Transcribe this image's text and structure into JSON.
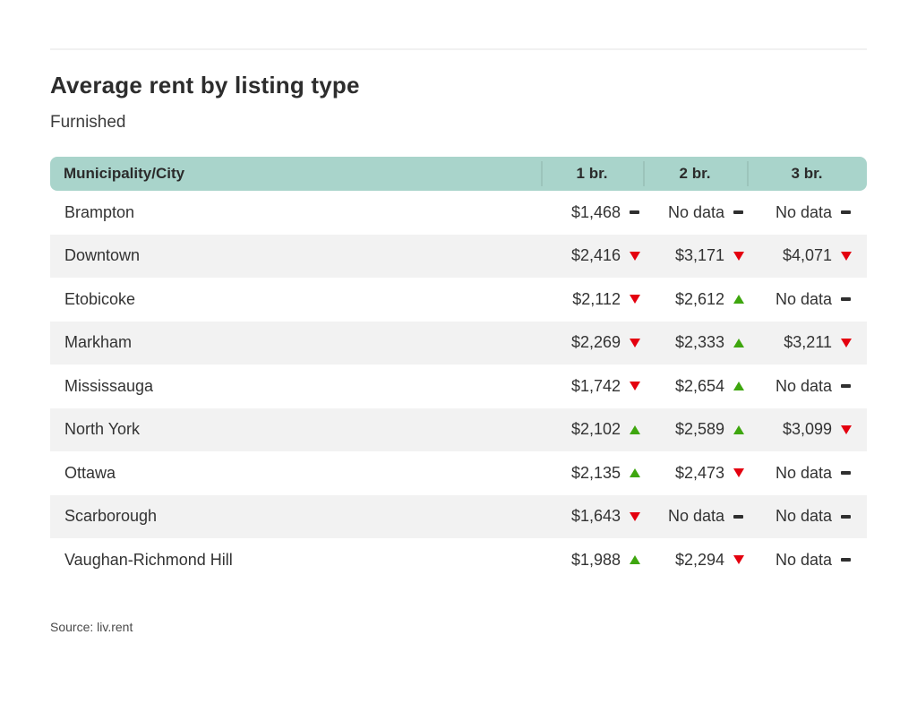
{
  "header": {
    "title": "Average rent by listing type",
    "subtitle": "Furnished"
  },
  "table": {
    "columns": [
      "Municipality/City",
      "1 br.",
      "2 br.",
      "3 br."
    ],
    "rows": [
      {
        "city": "Brampton",
        "cells": [
          {
            "text": "$1,468",
            "trend": "flat"
          },
          {
            "text": "No data",
            "trend": "flat"
          },
          {
            "text": "No data",
            "trend": "flat"
          }
        ]
      },
      {
        "city": "Downtown",
        "cells": [
          {
            "text": "$2,416",
            "trend": "down"
          },
          {
            "text": "$3,171",
            "trend": "down"
          },
          {
            "text": "$4,071",
            "trend": "down"
          }
        ]
      },
      {
        "city": "Etobicoke",
        "cells": [
          {
            "text": "$2,112",
            "trend": "down"
          },
          {
            "text": "$2,612",
            "trend": "up"
          },
          {
            "text": "No data",
            "trend": "flat"
          }
        ]
      },
      {
        "city": "Markham",
        "cells": [
          {
            "text": "$2,269",
            "trend": "down"
          },
          {
            "text": "$2,333",
            "trend": "up"
          },
          {
            "text": "$3,211",
            "trend": "down"
          }
        ]
      },
      {
        "city": "Mississauga",
        "cells": [
          {
            "text": "$1,742",
            "trend": "down"
          },
          {
            "text": "$2,654",
            "trend": "up"
          },
          {
            "text": "No data",
            "trend": "flat"
          }
        ]
      },
      {
        "city": "North York",
        "cells": [
          {
            "text": "$2,102",
            "trend": "up"
          },
          {
            "text": "$2,589",
            "trend": "up"
          },
          {
            "text": "$3,099",
            "trend": "down"
          }
        ]
      },
      {
        "city": "Ottawa",
        "cells": [
          {
            "text": "$2,135",
            "trend": "up"
          },
          {
            "text": "$2,473",
            "trend": "down"
          },
          {
            "text": "No data",
            "trend": "flat"
          }
        ]
      },
      {
        "city": "Scarborough",
        "cells": [
          {
            "text": "$1,643",
            "trend": "down"
          },
          {
            "text": "No data",
            "trend": "flat"
          },
          {
            "text": "No data",
            "trend": "flat"
          }
        ]
      },
      {
        "city": "Vaughan-Richmond Hill",
        "cells": [
          {
            "text": "$1,988",
            "trend": "up"
          },
          {
            "text": "$2,294",
            "trend": "down"
          },
          {
            "text": "No data",
            "trend": "flat"
          }
        ]
      }
    ]
  },
  "footer": {
    "source": "Source: liv.rent"
  },
  "colors": {
    "header_bg": "#a9d4cb",
    "header_divider": "#9cc4bb",
    "row_alt_bg": "#f2f2f2",
    "trend_up": "#3ea60e",
    "trend_down": "#e4000f",
    "trend_flat": "#2f2f2f",
    "text": "#333333",
    "top_rule": "#f1f1f1"
  },
  "chart_data": {
    "type": "table",
    "title": "Average rent by listing type",
    "subtitle": "Furnished",
    "columns": [
      "Municipality/City",
      "1 br.",
      "2 br.",
      "3 br."
    ],
    "categories": [
      "Brampton",
      "Downtown",
      "Etobicoke",
      "Markham",
      "Mississauga",
      "North York",
      "Ottawa",
      "Scarborough",
      "Vaughan-Richmond Hill"
    ],
    "series": [
      {
        "name": "1 br.",
        "values": [
          1468,
          2416,
          2112,
          2269,
          1742,
          2102,
          2135,
          1643,
          1988
        ],
        "trends": [
          "flat",
          "down",
          "down",
          "down",
          "down",
          "up",
          "up",
          "down",
          "up"
        ]
      },
      {
        "name": "2 br.",
        "values": [
          null,
          3171,
          2612,
          2333,
          2654,
          2589,
          2473,
          null,
          2294
        ],
        "trends": [
          "flat",
          "down",
          "up",
          "up",
          "up",
          "up",
          "down",
          "flat",
          "down"
        ]
      },
      {
        "name": "3 br.",
        "values": [
          null,
          4071,
          null,
          3211,
          null,
          3099,
          null,
          null,
          null
        ],
        "trends": [
          "flat",
          "down",
          "flat",
          "down",
          "flat",
          "down",
          "flat",
          "flat",
          "flat"
        ]
      }
    ],
    "no_data_label": "No data",
    "source": "Source: liv.rent"
  }
}
